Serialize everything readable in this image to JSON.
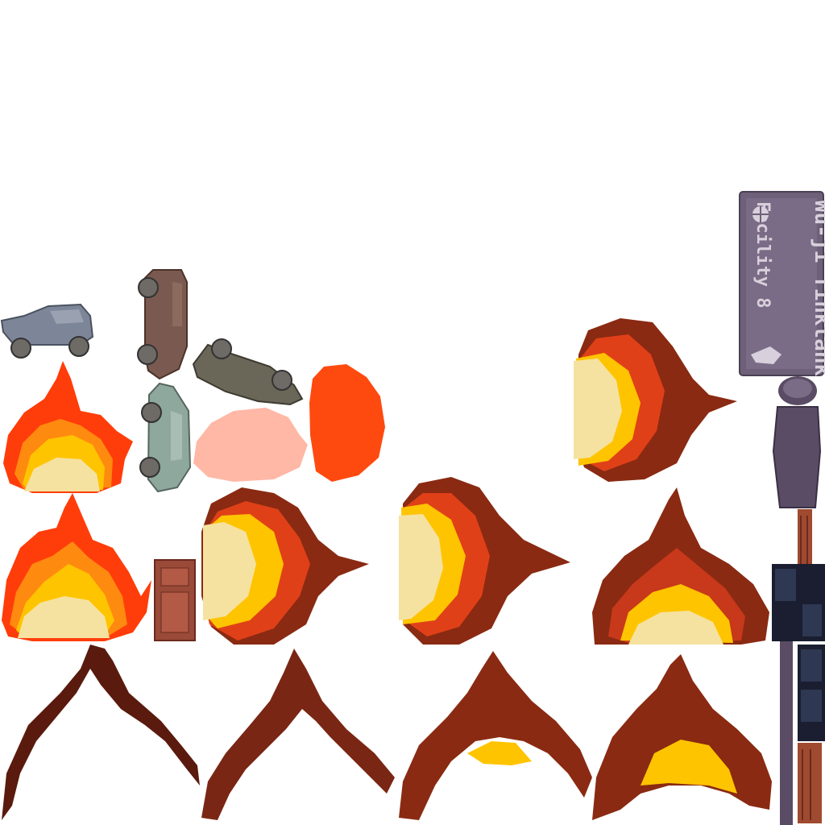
{
  "sheet": {
    "description_type": "sprite-atlas",
    "background": "#ffffff"
  },
  "palette": {
    "fire_red": "#ff3d0a",
    "fire_orange": "#ff7a10",
    "fire_yellow": "#ffc400",
    "fire_core": "#f5e2a0",
    "blast_dark": "#8a2a12",
    "blast_mid": "#b83a1c",
    "smoke_dark": "#5a1a0e",
    "car_blue": "#7d8698",
    "car_brown": "#7a5a50",
    "car_olive": "#6a6658",
    "car_mint": "#8fa89e",
    "puff_pink": "#ffb8a6",
    "puff_red": "#ff4a0f",
    "door_brown": "#9a4a38",
    "sign_purple": "#6e6078",
    "figure_purple": "#5a4c64"
  },
  "sign": {
    "line1": "Wu-ji Tinktank",
    "line2": "Facility 8"
  },
  "sprites": [
    {
      "id": "car-blue",
      "icon": "car-icon"
    },
    {
      "id": "car-brown-vertical",
      "icon": "car-icon"
    },
    {
      "id": "car-olive-tilted",
      "icon": "car-icon"
    },
    {
      "id": "car-mint-vertical",
      "icon": "car-icon"
    },
    {
      "id": "puff-pink",
      "icon": "cloud-icon"
    },
    {
      "id": "puff-red",
      "icon": "cloud-icon"
    },
    {
      "id": "fire-small",
      "icon": "fire-icon"
    },
    {
      "id": "fire-large",
      "icon": "fire-icon"
    },
    {
      "id": "door",
      "icon": "door-icon"
    },
    {
      "id": "blast-side-1",
      "icon": "explosion-icon"
    },
    {
      "id": "blast-side-2",
      "icon": "explosion-icon"
    },
    {
      "id": "blast-side-3",
      "icon": "explosion-icon"
    },
    {
      "id": "blast-up-1",
      "icon": "explosion-icon"
    },
    {
      "id": "smoke-1",
      "icon": "smoke-icon"
    },
    {
      "id": "smoke-2",
      "icon": "smoke-icon"
    },
    {
      "id": "smoke-3",
      "icon": "smoke-icon"
    },
    {
      "id": "smoke-4",
      "icon": "smoke-icon"
    },
    {
      "id": "sign-board",
      "icon": "sign-icon"
    },
    {
      "id": "figure-body",
      "icon": "figure-icon"
    },
    {
      "id": "pole-tiles",
      "icon": "pole-icon"
    }
  ]
}
